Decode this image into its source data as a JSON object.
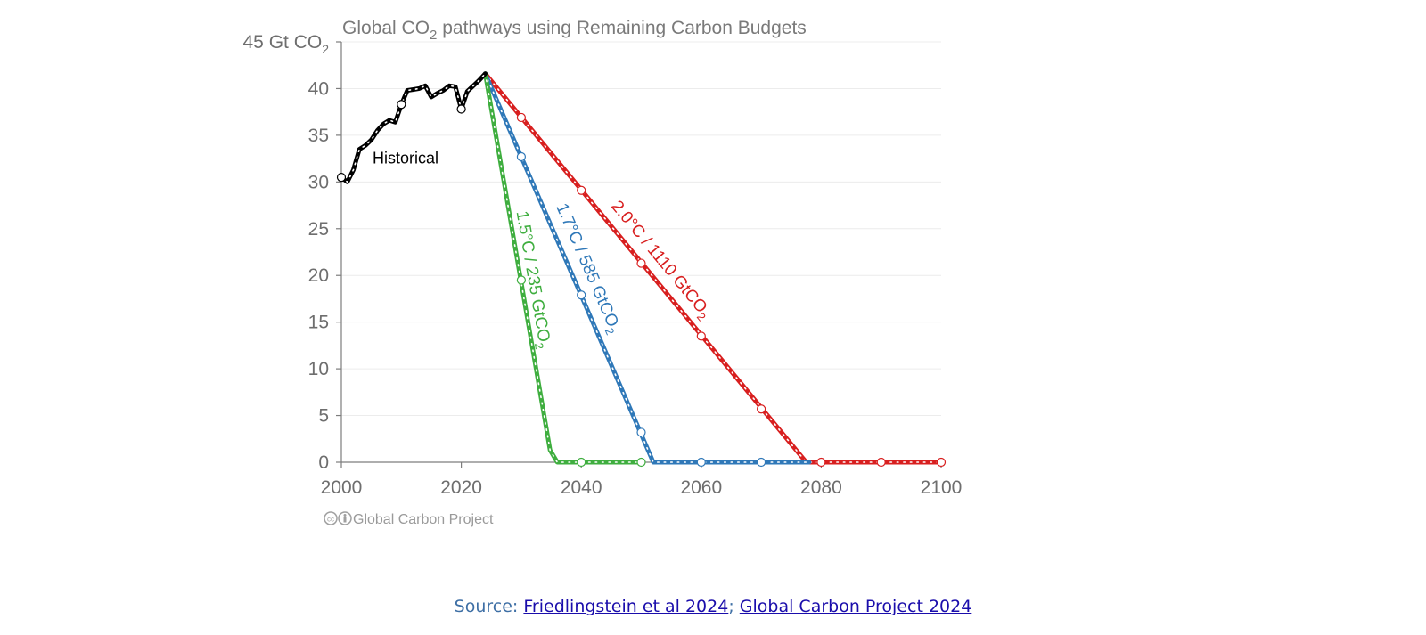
{
  "chart_data": {
    "type": "line",
    "title": "Global CO",
    "title_sub": "2",
    "title_rest": " pathways using Remaining Carbon Budgets",
    "y_unit_label": "45 Gt CO",
    "y_unit_sub": "2",
    "xlim": [
      2000,
      2100
    ],
    "ylim": [
      0,
      45
    ],
    "x_ticks": [
      2000,
      2020,
      2040,
      2060,
      2080,
      2100
    ],
    "y_ticks": [
      0,
      5,
      10,
      15,
      20,
      25,
      30,
      35,
      40
    ],
    "grid": true,
    "credit": "Global Carbon Project",
    "series": [
      {
        "name": "Historical",
        "color": "#000000",
        "x": [
          2000,
          2001,
          2002,
          2003,
          2004,
          2005,
          2006,
          2007,
          2008,
          2009,
          2010,
          2011,
          2012,
          2013,
          2014,
          2015,
          2016,
          2017,
          2018,
          2019,
          2020,
          2021,
          2022,
          2023,
          2024
        ],
        "values": [
          30.5,
          30.0,
          31.3,
          33.5,
          33.9,
          34.5,
          35.5,
          36.2,
          36.6,
          36.4,
          38.3,
          39.8,
          39.9,
          40.0,
          40.3,
          39.1,
          39.5,
          39.8,
          40.3,
          40.2,
          37.8,
          39.7,
          40.3,
          40.9,
          41.6
        ],
        "markers_x": [
          2000,
          2010,
          2020
        ],
        "markers_y": [
          30.5,
          38.3,
          37.8
        ]
      },
      {
        "name": "1.5°C / 235 GtCO₂",
        "label_main": "1.5°C / 235 GtCO",
        "label_sub": "2",
        "color": "#3fae3f",
        "x": [
          2024,
          2034.8,
          2036,
          2100
        ],
        "values": [
          41.6,
          1.3,
          0,
          0
        ],
        "markers_x": [
          2030,
          2040,
          2050
        ],
        "markers_y": [
          19.5,
          0,
          0
        ],
        "clip_x": 2050
      },
      {
        "name": "1.7°C / 585 GtCO₂",
        "label_main": "1.7°C / 585 GtCO",
        "label_sub": "2",
        "color": "#2f78b8",
        "x": [
          2024,
          2052,
          2100
        ],
        "values": [
          41.6,
          0,
          0
        ],
        "markers_x": [
          2030,
          2040,
          2050,
          2060,
          2070
        ],
        "markers_y": [
          32.7,
          17.9,
          3.2,
          0,
          0
        ],
        "clip_x": 2078
      },
      {
        "name": "2.0°C / 1110 GtCO₂",
        "label_main": "2.0°C / 1110 GtCO",
        "label_sub": "2",
        "color": "#d81f1f",
        "x": [
          2024,
          2077.5,
          2100
        ],
        "values": [
          41.6,
          0,
          0
        ],
        "markers_x": [
          2030,
          2040,
          2050,
          2060,
          2070,
          2080,
          2090,
          2100
        ],
        "markers_y": [
          36.9,
          29.1,
          21.3,
          13.5,
          5.7,
          0,
          0,
          0
        ],
        "clip_x": 2100
      }
    ],
    "annotations": [
      {
        "text": "Historical",
        "x": 2005.2,
        "y": 32.0
      }
    ]
  },
  "source": {
    "prefix": "Source: ",
    "link1": "Friedlingstein et al 2024",
    "separator": "; ",
    "link2": "Global Carbon Project 2024"
  }
}
